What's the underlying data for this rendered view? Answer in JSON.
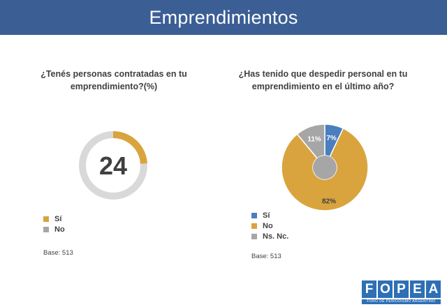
{
  "header": {
    "title": "Emprendimientos"
  },
  "colors": {
    "header_bg": "#3b5e95",
    "si": "#d9a43e",
    "no": "#a6a6a6",
    "ns": "#a6a6a6",
    "blue": "#4a7ebf",
    "ring_bg": "#d9d9d9"
  },
  "left": {
    "question": "¿Tenés personas contratadas en tu emprendimiento?(%)",
    "legend": [
      {
        "label": "Sí",
        "color": "#d9a43e"
      },
      {
        "label": "No",
        "color": "#a6a6a6"
      }
    ],
    "base": "Base: 513"
  },
  "right": {
    "question": "¿Has tenido que despedir personal en tu emprendimiento en el último año?",
    "legend": [
      {
        "label": "Sí",
        "color": "#4a7ebf"
      },
      {
        "label": "No",
        "color": "#d9a43e"
      },
      {
        "label": "Ns. Nc.",
        "color": "#a6a6a6"
      }
    ],
    "base": "Base: 513"
  },
  "logo": {
    "letters": [
      "F",
      "O",
      "P",
      "E",
      "A"
    ],
    "subtitle": "FORO DE PERIODISMO ARGENTINO"
  },
  "chart_data": [
    {
      "type": "pie",
      "subtype": "progress-ring",
      "title": "¿Tenés personas contratadas en tu emprendimiento?(%)",
      "value": 24,
      "center_label": "24",
      "categories": [
        "Sí",
        "No"
      ],
      "values": [
        24,
        76
      ]
    },
    {
      "type": "pie",
      "subtype": "donut",
      "title": "¿Has tenido que despedir personal en tu emprendimiento en el último año?",
      "categories": [
        "Sí",
        "No",
        "Ns. Nc."
      ],
      "values": [
        7,
        82,
        11
      ],
      "labels": [
        "7%",
        "82%",
        "11%"
      ]
    }
  ]
}
